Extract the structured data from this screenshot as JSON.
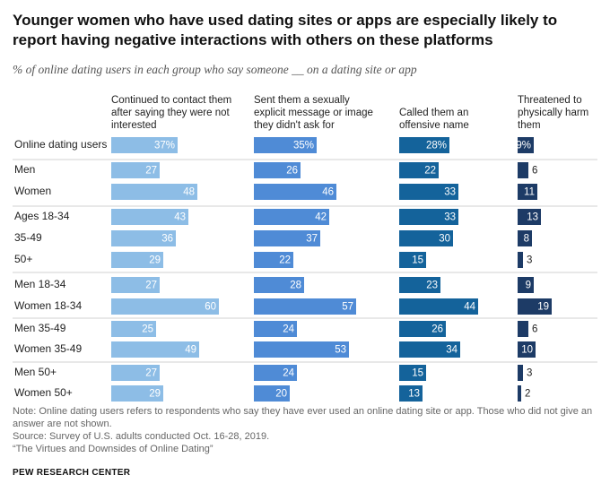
{
  "chart_data": {
    "type": "bar",
    "orientation": "horizontal",
    "title": "Younger women who have used dating sites or apps are especially likely to report having negative interactions with others on these platforms",
    "subtitle": "% of online dating users in each group who say someone __ on a dating site or app",
    "categories": [
      "Online dating users",
      "Men",
      "Women",
      "Ages 18-34",
      "35-49",
      "50+",
      "Men 18-34",
      "Women 18-34",
      "Men 35-49",
      "Women 35-49",
      "Men 50+",
      "Women 50+"
    ],
    "series": [
      {
        "name": "Continued to contact them after saying they were not interested",
        "color": "#8dbde6",
        "values": [
          37,
          27,
          48,
          43,
          36,
          29,
          27,
          60,
          25,
          49,
          27,
          29
        ],
        "value_labels": [
          "37%",
          "27",
          "48",
          "43",
          "36",
          "29",
          "27",
          "60",
          "25",
          "49",
          "27",
          "29"
        ]
      },
      {
        "name": "Sent them a sexually explicit message or image they didn't ask for",
        "color": "#4f8bd6",
        "values": [
          35,
          26,
          46,
          42,
          37,
          22,
          28,
          57,
          24,
          53,
          24,
          20
        ],
        "value_labels": [
          "35%",
          "26",
          "46",
          "42",
          "37",
          "22",
          "28",
          "57",
          "24",
          "53",
          "24",
          "20"
        ]
      },
      {
        "name": "Called them an offensive name",
        "color": "#14639b",
        "values": [
          28,
          22,
          33,
          33,
          30,
          15,
          23,
          44,
          26,
          34,
          15,
          13
        ],
        "value_labels": [
          "28%",
          "22",
          "33",
          "33",
          "30",
          "15",
          "23",
          "44",
          "26",
          "34",
          "15",
          "13"
        ]
      },
      {
        "name": "Threatened to physically harm them",
        "color": "#1d3b66",
        "values": [
          9,
          6,
          11,
          13,
          8,
          3,
          9,
          19,
          6,
          10,
          3,
          2
        ],
        "value_labels": [
          "9%",
          "6",
          "11",
          "13",
          "8",
          "3",
          "9",
          "19",
          "6",
          "10",
          "3",
          "2"
        ]
      }
    ],
    "notes": [
      "Note: Online dating users refers to respondents who say they have ever used an online dating site or app. Those who did not give an answer are not shown.",
      "Source: Survey of U.S. adults conducted Oct. 16-28, 2019.",
      "“The Virtues and Downsides of Online Dating”"
    ],
    "source": "PEW RESEARCH CENTER"
  }
}
